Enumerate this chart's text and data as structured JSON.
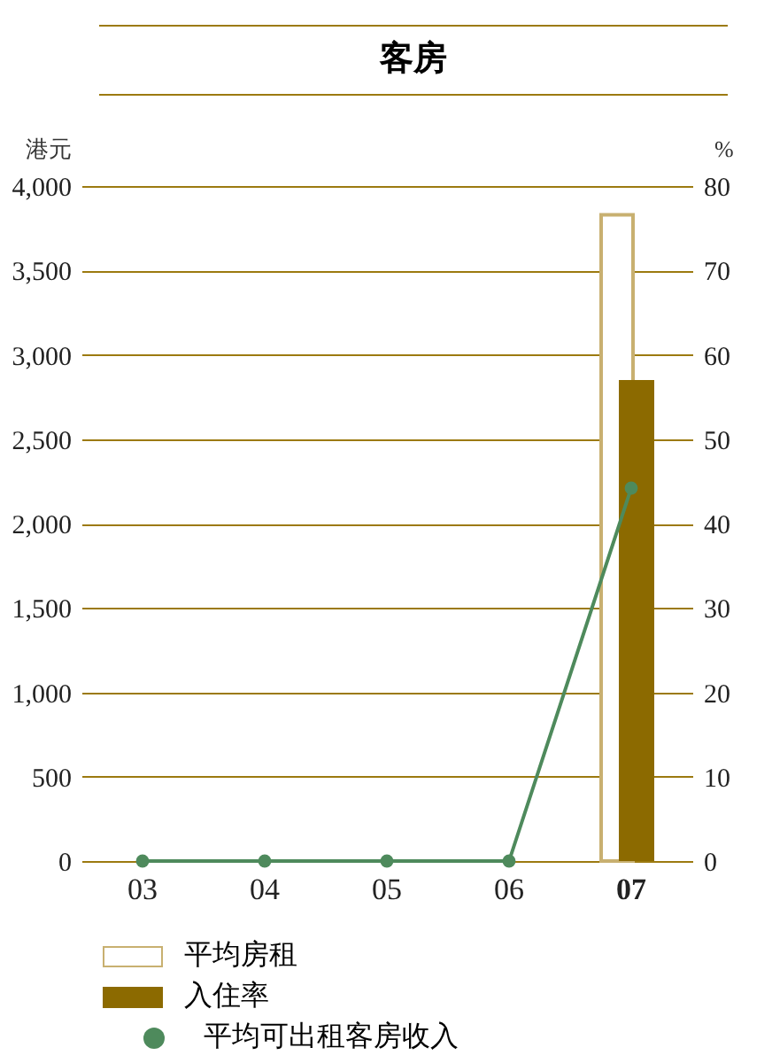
{
  "chart_data": {
    "type": "bar",
    "title": "客房",
    "ylabel": "港元",
    "y2label": "%",
    "categories": [
      "03",
      "04",
      "05",
      "06",
      "07"
    ],
    "series": [
      {
        "name": "平均房租",
        "color": "#c8b070",
        "values": [
          null,
          null,
          null,
          null,
          3830
        ]
      },
      {
        "name": "入住率",
        "axis": "y2",
        "color": "#8c6a00",
        "values": [
          null,
          null,
          null,
          null,
          57
        ]
      },
      {
        "name": "平均可出租客房收入",
        "type": "line",
        "color": "#4e8a5c",
        "marker": "circle",
        "values": [
          0,
          0,
          0,
          0,
          2210
        ]
      }
    ],
    "ylim": [
      0,
      4000
    ],
    "yticks": [
      0,
      500,
      {
        "value": 1000,
        "label": "1,000"
      },
      {
        "value": 1500,
        "label": "1,500"
      },
      {
        "value": 2000,
        "label": "2,000"
      },
      {
        "value": 2500,
        "label": "2,500"
      },
      {
        "value": 3000,
        "label": "3,000"
      },
      {
        "value": 3500,
        "label": "3,500"
      },
      {
        "value": 4000,
        "label": "4,000"
      }
    ],
    "y2lim": [
      0,
      80
    ],
    "y2ticks": [
      0,
      10,
      20,
      30,
      40,
      50,
      60,
      70,
      80
    ],
    "grid": "y",
    "legend": "bottom left"
  }
}
